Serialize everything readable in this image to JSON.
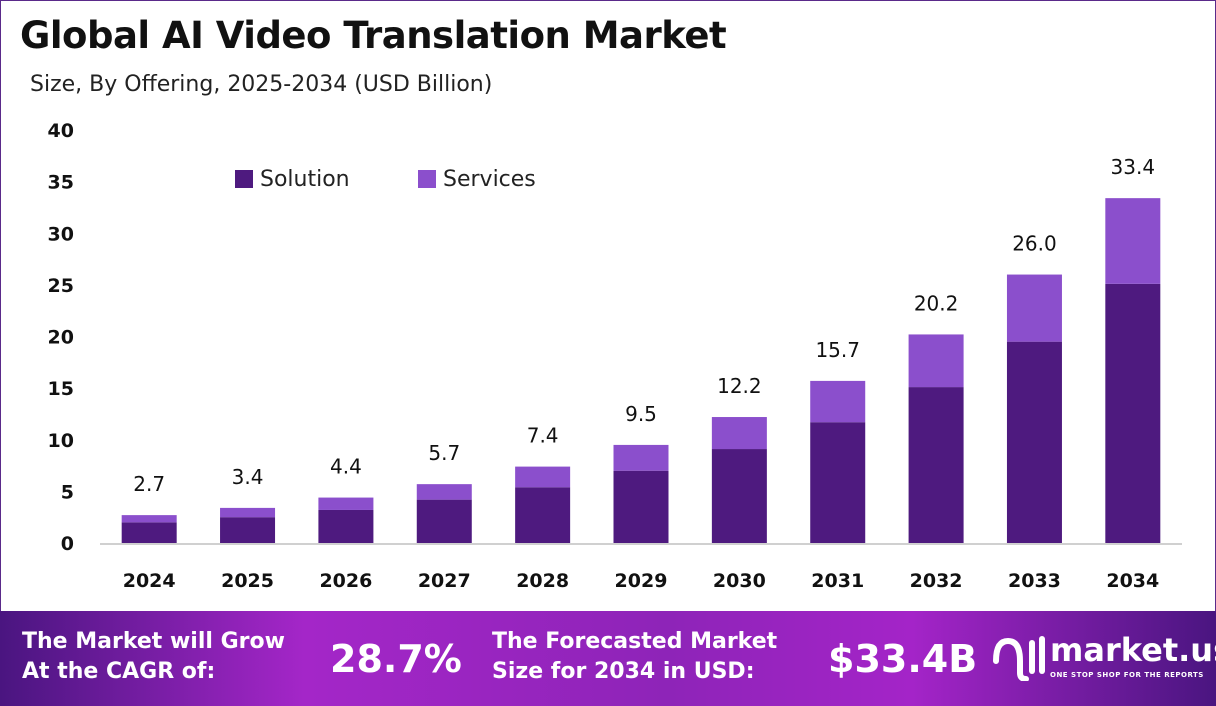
{
  "chart_data": {
    "type": "bar",
    "stacked": true,
    "title": "Global AI Video Translation Market",
    "subtitle": "Size, By Offering, 2025-2034 (USD Billion)",
    "categories": [
      "2024",
      "2025",
      "2026",
      "2027",
      "2028",
      "2029",
      "2030",
      "2031",
      "2032",
      "2033",
      "2034"
    ],
    "series": [
      {
        "name": "Solution",
        "color": "#4e1a7f",
        "values": [
          2.0,
          2.5,
          3.2,
          4.2,
          5.4,
          7.0,
          9.1,
          11.7,
          15.1,
          19.5,
          25.1
        ]
      },
      {
        "name": "Services",
        "color": "#8b4fcc",
        "values": [
          0.7,
          0.9,
          1.2,
          1.5,
          2.0,
          2.5,
          3.1,
          4.0,
          5.1,
          6.5,
          8.3
        ]
      }
    ],
    "totals": [
      "2.7",
      "3.4",
      "4.4",
      "5.7",
      "7.4",
      "9.5",
      "12.2",
      "15.7",
      "20.2",
      "26.0",
      "33.4"
    ],
    "ylim": [
      0,
      40
    ],
    "yticks": [
      "0",
      "5",
      "10",
      "15",
      "20",
      "25",
      "30",
      "35",
      "40"
    ],
    "grid": false,
    "legend_position": "top-left"
  },
  "footer": {
    "cagr_label_line1": "The Market will Grow",
    "cagr_label_line2": "At the CAGR of:",
    "cagr_value": "28.7%",
    "forecast_label_line1": "The Forecasted Market",
    "forecast_label_line2": "Size for 2034 in USD:",
    "forecast_value": "$33.4B",
    "logo_name": "market.us",
    "logo_tagline": "ONE STOP SHOP FOR THE REPORTS"
  }
}
